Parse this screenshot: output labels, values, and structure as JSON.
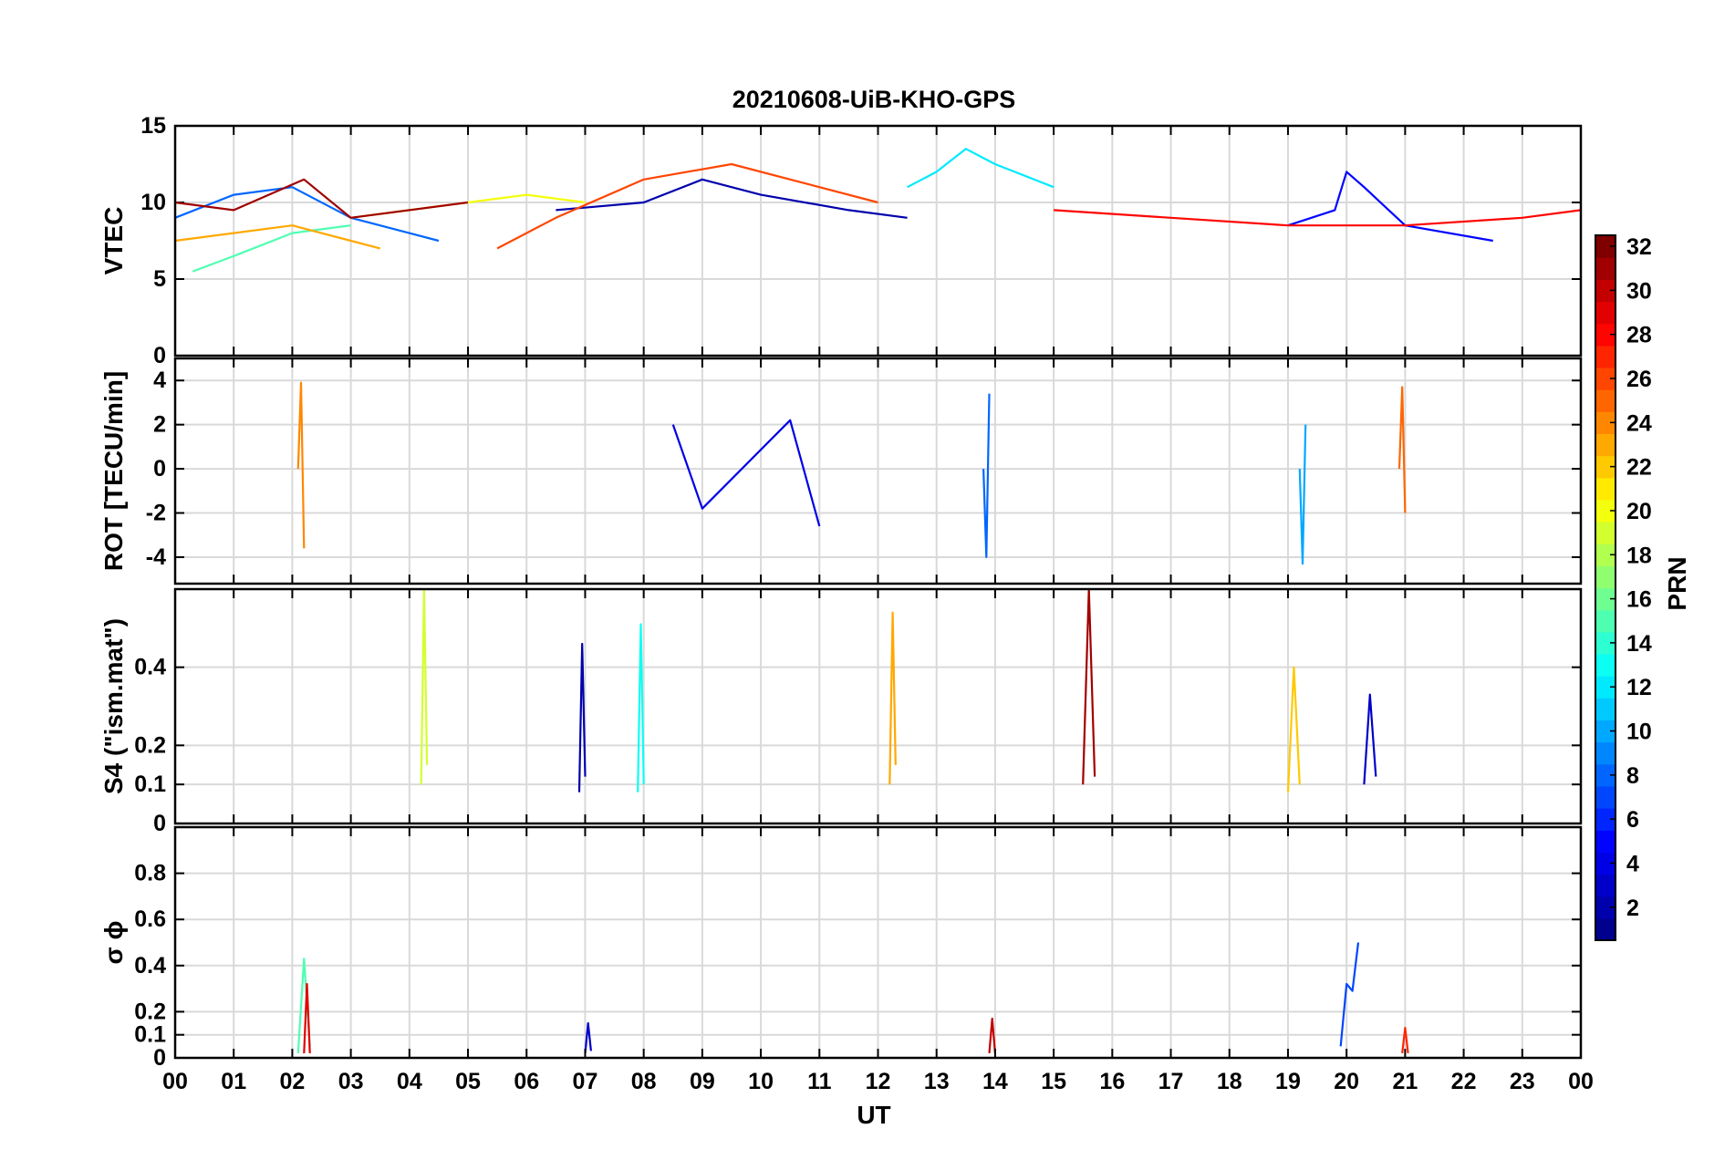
{
  "figure": {
    "title": "20210608-UiB-KHO-GPS",
    "x_axis_label": "UT",
    "x_tick_labels": [
      "00",
      "01",
      "02",
      "03",
      "04",
      "05",
      "06",
      "07",
      "08",
      "09",
      "10",
      "11",
      "12",
      "13",
      "14",
      "15",
      "16",
      "17",
      "18",
      "19",
      "20",
      "21",
      "22",
      "23",
      "00"
    ],
    "colorbar_label": "PRN",
    "colorbar_tick_labels": [
      "2",
      "4",
      "6",
      "8",
      "10",
      "12",
      "14",
      "16",
      "18",
      "20",
      "22",
      "24",
      "26",
      "28",
      "30",
      "32"
    ],
    "colormap": [
      "#00008f",
      "#0000ff",
      "#007fff",
      "#00ffff",
      "#7fff7f",
      "#ffff00",
      "#ff7f00",
      "#ff0000",
      "#800000"
    ]
  },
  "chart_data": [
    {
      "type": "line",
      "panel": "VTEC",
      "ylabel": "VTEC",
      "xlim": [
        0,
        24
      ],
      "ylim": [
        0,
        15
      ],
      "yticks": [
        0,
        5,
        10,
        15
      ],
      "ytick_labels": [
        "0",
        "5",
        "10",
        "15"
      ],
      "grid": true,
      "series_color_by": "PRN",
      "series": [
        {
          "prn": 2,
          "x": [
            6.5,
            8.0,
            9.0,
            10.0,
            11.5,
            12.5
          ],
          "y": [
            9.5,
            10.0,
            11.5,
            10.5,
            9.5,
            9.0
          ]
        },
        {
          "prn": 5,
          "x": [
            19.0,
            19.8,
            20.0,
            20.3,
            21.0,
            22.5
          ],
          "y": [
            8.5,
            9.5,
            12.0,
            11.0,
            8.5,
            7.5
          ]
        },
        {
          "prn": 8,
          "x": [
            0.0,
            1.0,
            2.0,
            3.0,
            4.5
          ],
          "y": [
            9.0,
            10.5,
            11.0,
            9.0,
            7.5
          ]
        },
        {
          "prn": 12,
          "x": [
            12.5,
            13.0,
            13.5,
            14.0,
            15.0
          ],
          "y": [
            11.0,
            12.0,
            13.5,
            12.5,
            11.0
          ]
        },
        {
          "prn": 15,
          "x": [
            0.3,
            1.0,
            2.0,
            3.0
          ],
          "y": [
            5.5,
            6.5,
            8.0,
            8.5
          ]
        },
        {
          "prn": 20,
          "x": [
            3.0,
            4.0,
            5.0,
            6.0,
            7.0
          ],
          "y": [
            9.0,
            9.5,
            10.0,
            10.5,
            10.0
          ]
        },
        {
          "prn": 23,
          "x": [
            0.0,
            1.0,
            2.0,
            3.5
          ],
          "y": [
            7.5,
            8.0,
            8.5,
            7.0
          ]
        },
        {
          "prn": 26,
          "x": [
            5.5,
            6.5,
            8.0,
            9.5,
            11.0,
            12.0
          ],
          "y": [
            7.0,
            9.0,
            11.5,
            12.5,
            11.0,
            10.0
          ]
        },
        {
          "prn": 28,
          "x": [
            15.0,
            17.0,
            19.0,
            21.0,
            23.0,
            24.0
          ],
          "y": [
            9.5,
            9.0,
            8.5,
            8.5,
            9.0,
            9.5
          ]
        },
        {
          "prn": 31,
          "x": [
            0.0,
            1.0,
            2.2,
            3.0,
            5.0
          ],
          "y": [
            10.0,
            9.5,
            11.5,
            9.0,
            10.0
          ]
        }
      ]
    },
    {
      "type": "line",
      "panel": "ROT",
      "ylabel": "ROT [TECU/min]",
      "xlim": [
        0,
        24
      ],
      "ylim": [
        -5.2,
        5.0
      ],
      "yticks": [
        -4,
        -2,
        0,
        2,
        4
      ],
      "ytick_labels": [
        "-4",
        "-2",
        "0",
        "2",
        "4"
      ],
      "grid": true,
      "series_color_by": "PRN",
      "series": [
        {
          "prn": 24,
          "x": [
            2.1,
            2.15,
            2.2
          ],
          "y": [
            0.0,
            3.9,
            -3.6
          ]
        },
        {
          "prn": 8,
          "x": [
            13.8,
            13.85,
            13.9
          ],
          "y": [
            0.0,
            -4.0,
            3.4
          ]
        },
        {
          "prn": 10,
          "x": [
            19.2,
            19.25,
            19.3
          ],
          "y": [
            0.0,
            -4.3,
            2.0
          ]
        },
        {
          "prn": 25,
          "x": [
            20.9,
            20.95,
            21.0
          ],
          "y": [
            0.0,
            3.7,
            -2.0
          ]
        },
        {
          "prn": 4,
          "x": [
            8.5,
            9.0,
            10.5,
            11.0
          ],
          "y": [
            2.0,
            -1.8,
            2.2,
            -2.6
          ]
        }
      ]
    },
    {
      "type": "line",
      "panel": "S4",
      "ylabel": "S4 (\"ism.mat\")",
      "xlim": [
        0,
        24
      ],
      "ylim": [
        0,
        0.6
      ],
      "yticks": [
        0,
        0.1,
        0.2,
        0.4
      ],
      "ytick_labels": [
        "0",
        "0.1",
        "0.2",
        "0.4"
      ],
      "grid": true,
      "series_color_by": "PRN",
      "series": [
        {
          "prn": 19,
          "x": [
            4.2,
            4.25,
            4.3
          ],
          "y": [
            0.1,
            0.6,
            0.15
          ]
        },
        {
          "prn": 2,
          "x": [
            6.9,
            6.95,
            7.0
          ],
          "y": [
            0.08,
            0.46,
            0.12
          ]
        },
        {
          "prn": 13,
          "x": [
            7.9,
            7.95,
            8.0
          ],
          "y": [
            0.08,
            0.51,
            0.1
          ]
        },
        {
          "prn": 23,
          "x": [
            12.2,
            12.25,
            12.3
          ],
          "y": [
            0.1,
            0.54,
            0.15
          ]
        },
        {
          "prn": 31,
          "x": [
            15.5,
            15.6,
            15.7
          ],
          "y": [
            0.1,
            0.6,
            0.12
          ]
        },
        {
          "prn": 22,
          "x": [
            19.0,
            19.1,
            19.2
          ],
          "y": [
            0.08,
            0.4,
            0.1
          ]
        },
        {
          "prn": 3,
          "x": [
            20.3,
            20.4,
            20.5
          ],
          "y": [
            0.1,
            0.33,
            0.12
          ]
        }
      ]
    },
    {
      "type": "line",
      "panel": "sigma_phi",
      "ylabel": "σ ϕ",
      "xlim": [
        0,
        24
      ],
      "ylim": [
        0,
        1.0
      ],
      "yticks": [
        0,
        0.1,
        0.2,
        0.4,
        0.6,
        0.8
      ],
      "ytick_labels": [
        "0",
        "0.1",
        "0.2",
        "0.4",
        "0.6",
        "0.8"
      ],
      "grid": true,
      "series_color_by": "PRN",
      "series": [
        {
          "prn": 15,
          "x": [
            2.1,
            2.2,
            2.3
          ],
          "y": [
            0.02,
            0.43,
            0.05
          ]
        },
        {
          "prn": 29,
          "x": [
            2.2,
            2.25,
            2.3
          ],
          "y": [
            0.02,
            0.32,
            0.02
          ]
        },
        {
          "prn": 3,
          "x": [
            7.0,
            7.05,
            7.1
          ],
          "y": [
            0.02,
            0.15,
            0.03
          ]
        },
        {
          "prn": 30,
          "x": [
            13.9,
            13.95,
            14.0
          ],
          "y": [
            0.02,
            0.17,
            0.02
          ]
        },
        {
          "prn": 7,
          "x": [
            19.9,
            20.0,
            20.1,
            20.2
          ],
          "y": [
            0.05,
            0.32,
            0.29,
            0.5
          ]
        },
        {
          "prn": 27,
          "x": [
            20.95,
            21.0,
            21.05
          ],
          "y": [
            0.02,
            0.13,
            0.02
          ]
        }
      ]
    }
  ]
}
